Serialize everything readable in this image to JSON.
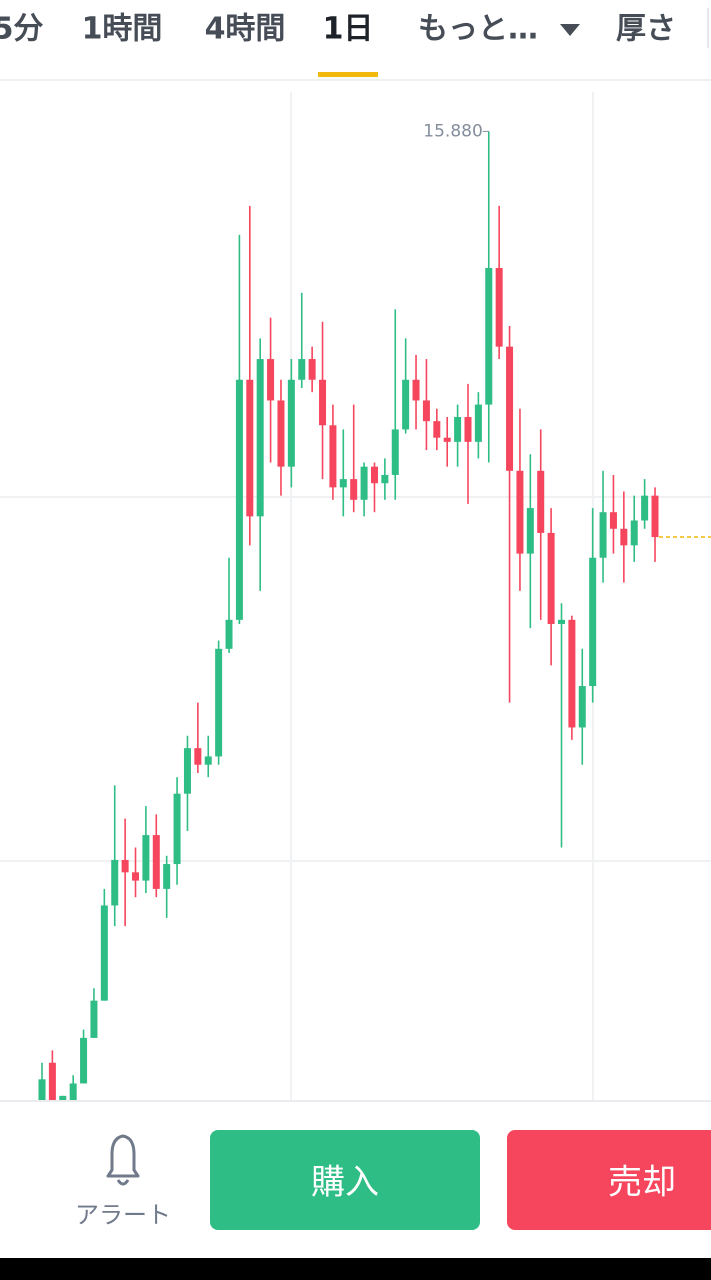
{
  "tabs": [
    "5分",
    "1時間",
    "4時間",
    "1日",
    "もっと…",
    "厚さ"
  ],
  "selected_tab": 3,
  "chart_data": {
    "type": "candlestick",
    "open": [
      13.54,
      13.63,
      13.54,
      13.54,
      13.58,
      13.69,
      13.78,
      14.01,
      14.12,
      14.09,
      14.07,
      14.18,
      14.05,
      14.11,
      14.28,
      14.39,
      14.35,
      14.37,
      14.63,
      14.7,
      15.28,
      14.95,
      15.33,
      15.23,
      15.07,
      15.28,
      15.33,
      15.28,
      15.17,
      15.02,
      15.04,
      14.99,
      15.07,
      15.03,
      15.05,
      15.16,
      15.28,
      15.23,
      15.18,
      15.14,
      15.13,
      15.19,
      15.13,
      15.22,
      15.55,
      15.36,
      15.06,
      14.86,
      15.06,
      14.91,
      14.69,
      14.7,
      14.44,
      14.54,
      14.85,
      14.96,
      14.92,
      14.88,
      14.94,
      15.0
    ],
    "high": [
      13.63,
      13.66,
      13.55,
      13.6,
      13.71,
      13.81,
      14.05,
      14.3,
      14.22,
      14.15,
      14.25,
      14.23,
      14.13,
      14.32,
      14.42,
      14.5,
      14.42,
      14.65,
      14.85,
      15.63,
      15.7,
      15.38,
      15.43,
      15.28,
      15.33,
      15.49,
      15.36,
      15.42,
      15.22,
      15.16,
      15.22,
      15.08,
      15.08,
      15.09,
      15.45,
      15.38,
      15.34,
      15.33,
      15.21,
      15.19,
      15.22,
      15.27,
      15.25,
      15.88,
      15.7,
      15.41,
      15.21,
      15.1,
      15.16,
      14.97,
      14.74,
      14.71,
      14.63,
      14.97,
      15.06,
      15.05,
      15.01,
      15.0,
      15.04,
      15.02
    ],
    "low": [
      13.54,
      13.54,
      13.54,
      13.54,
      13.58,
      13.69,
      13.78,
      13.96,
      13.96,
      14.03,
      14.04,
      14.03,
      13.98,
      14.06,
      14.19,
      14.33,
      14.32,
      14.35,
      14.62,
      14.69,
      14.88,
      14.77,
      15.08,
      15.0,
      15.02,
      15.26,
      15.25,
      15.04,
      14.99,
      14.95,
      14.96,
      14.95,
      14.96,
      14.99,
      14.99,
      15.15,
      15.16,
      15.11,
      15.11,
      15.07,
      15.07,
      14.98,
      15.09,
      15.08,
      15.33,
      14.5,
      14.77,
      14.68,
      14.7,
      14.59,
      14.15,
      14.41,
      14.35,
      14.5,
      14.79,
      14.86,
      14.79,
      14.84,
      14.92,
      14.84
    ],
    "close": [
      13.59,
      13.54,
      13.55,
      13.58,
      13.69,
      13.78,
      14.01,
      14.12,
      14.09,
      14.07,
      14.18,
      14.05,
      14.11,
      14.28,
      14.39,
      14.35,
      14.37,
      14.63,
      14.7,
      15.28,
      14.95,
      15.33,
      15.23,
      15.07,
      15.28,
      15.33,
      15.28,
      15.17,
      15.02,
      15.04,
      14.99,
      15.07,
      15.03,
      15.05,
      15.16,
      15.28,
      15.23,
      15.18,
      15.14,
      15.13,
      15.19,
      15.13,
      15.22,
      15.55,
      15.36,
      15.06,
      14.86,
      14.97,
      14.91,
      14.69,
      14.7,
      14.44,
      14.54,
      14.85,
      14.96,
      14.92,
      14.88,
      14.94,
      15.0,
      14.9
    ],
    "up_color": "#2ebd85",
    "down_color": "#f6465d",
    "ylim": [
      13.54,
      15.98
    ],
    "max_label": {
      "value": 15.88,
      "label": "15.880"
    }
  },
  "bottom": {
    "alert": "アラート",
    "buy": "購入",
    "sell": "売却"
  }
}
